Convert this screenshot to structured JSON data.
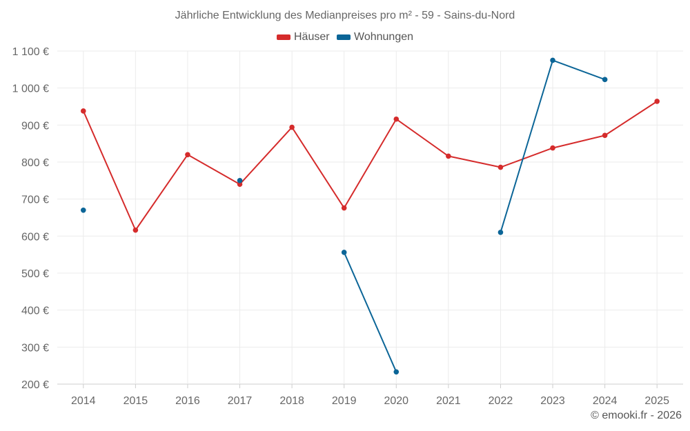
{
  "chart_data": {
    "type": "line",
    "title": "Jährliche Entwicklung des Medianpreises pro m² - 59 - Sains-du-Nord",
    "xlabel": "",
    "ylabel": "",
    "categories": [
      "2014",
      "2015",
      "2016",
      "2017",
      "2018",
      "2019",
      "2020",
      "2021",
      "2022",
      "2023",
      "2024",
      "2025"
    ],
    "ylim": [
      200,
      1100
    ],
    "yticks": [
      200,
      300,
      400,
      500,
      600,
      700,
      800,
      900,
      1000,
      1100
    ],
    "ytick_labels": [
      "200 €",
      "300 €",
      "400 €",
      "500 €",
      "600 €",
      "700 €",
      "800 €",
      "900 €",
      "1 000 €",
      "1 100 €"
    ],
    "grid": true,
    "legend_position": "top-center",
    "series": [
      {
        "name": "Häuser",
        "color": "#d52b2b",
        "values": [
          938,
          616,
          820,
          740,
          894,
          676,
          916,
          816,
          786,
          838,
          872,
          964
        ]
      },
      {
        "name": "Wohnungen",
        "color": "#0b6597",
        "values": [
          670,
          null,
          null,
          750,
          null,
          556,
          233,
          null,
          610,
          1075,
          1023,
          null
        ]
      }
    ]
  },
  "footer": "© emooki.fr - 2026"
}
